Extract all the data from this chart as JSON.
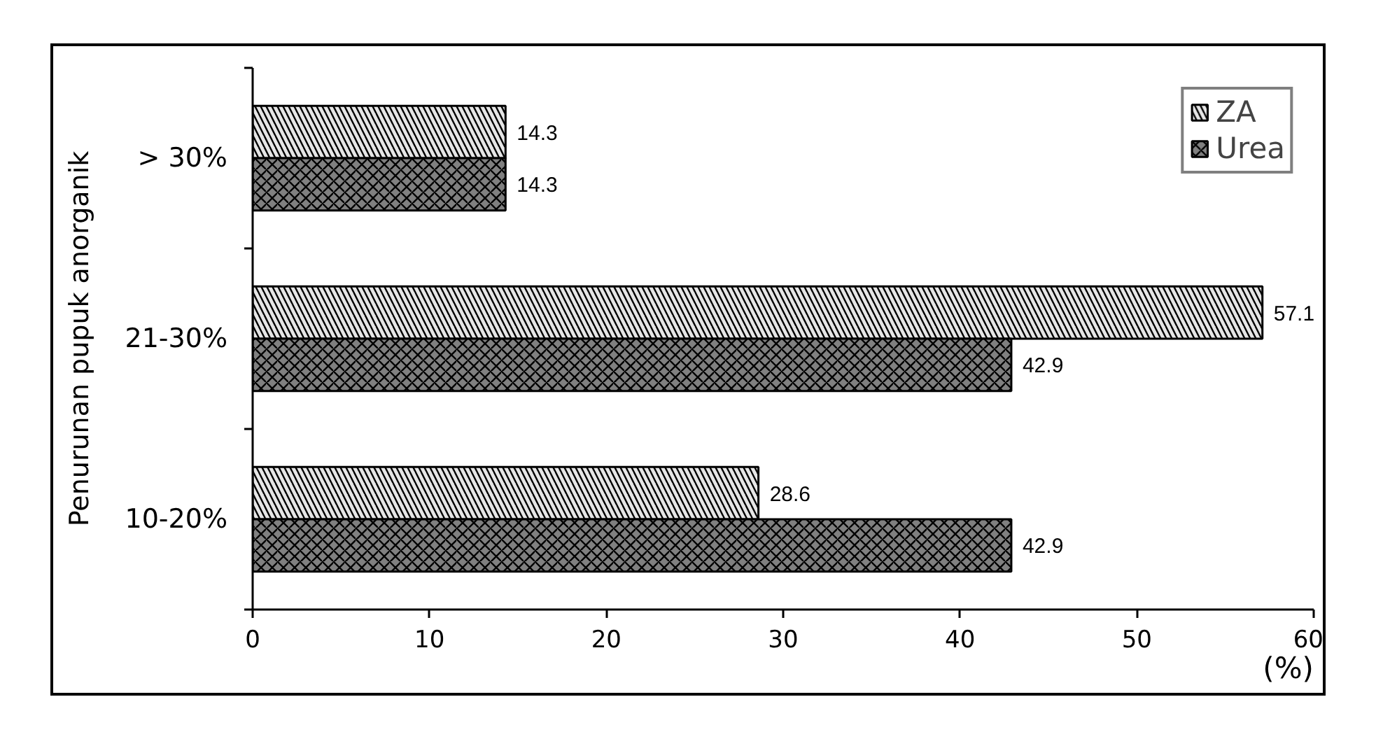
{
  "chart_data": {
    "type": "bar",
    "orientation": "horizontal",
    "ylabel": "Penurunan pupuk anorganik",
    "xlabel": "(%)",
    "categories": [
      "> 30%",
      "21-30%",
      "10-20%"
    ],
    "series": [
      {
        "name": "ZA",
        "color": "#e6e6e6",
        "values": [
          14.3,
          57.1,
          28.6
        ]
      },
      {
        "name": "Urea",
        "color": "#808080",
        "values": [
          14.3,
          42.9,
          42.9
        ]
      }
    ],
    "xlim": [
      0,
      60
    ],
    "xticks": [
      0,
      10,
      20,
      30,
      40,
      50,
      60
    ],
    "data_labels": true,
    "legend": "top right",
    "grid": false
  }
}
